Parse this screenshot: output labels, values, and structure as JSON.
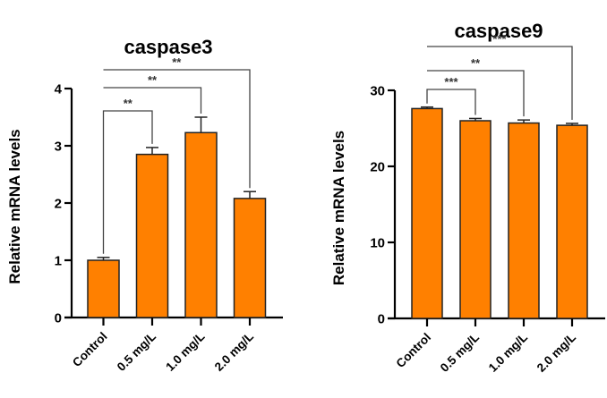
{
  "chart_data": [
    {
      "type": "bar",
      "title": "caspase3",
      "xlabel": "",
      "ylabel": "Relative mRNA levels",
      "categories": [
        "Control",
        "0.5 mg/L",
        "1.0 mg/L",
        "2.0 mg/L"
      ],
      "values": [
        1.0,
        2.85,
        3.23,
        2.08
      ],
      "error": [
        0.05,
        0.12,
        0.27,
        0.12
      ],
      "ylim": [
        0,
        4
      ],
      "yticks": [
        "0",
        "1",
        "2",
        "3",
        "4"
      ],
      "bar_color": "#ff8000",
      "grid": false,
      "significance": [
        {
          "from": 0,
          "to": 1,
          "label": "**"
        },
        {
          "from": 0,
          "to": 2,
          "label": "**"
        },
        {
          "from": 0,
          "to": 3,
          "label": "**"
        }
      ]
    },
    {
      "type": "bar",
      "title": "caspase9",
      "xlabel": "",
      "ylabel": "Relative mRNA levels",
      "categories": [
        "Control",
        "0.5 mg/L",
        "1.0 mg/L",
        "2.0 mg/L"
      ],
      "values": [
        27.6,
        26.0,
        25.7,
        25.4
      ],
      "error": [
        0.2,
        0.3,
        0.4,
        0.25
      ],
      "ylim": [
        0,
        30
      ],
      "yticks": [
        "0",
        "10",
        "20",
        "30"
      ],
      "bar_color": "#ff8000",
      "grid": false,
      "significance": [
        {
          "from": 0,
          "to": 1,
          "label": "***"
        },
        {
          "from": 0,
          "to": 2,
          "label": "**"
        },
        {
          "from": 0,
          "to": 3,
          "label": "***"
        }
      ]
    }
  ]
}
